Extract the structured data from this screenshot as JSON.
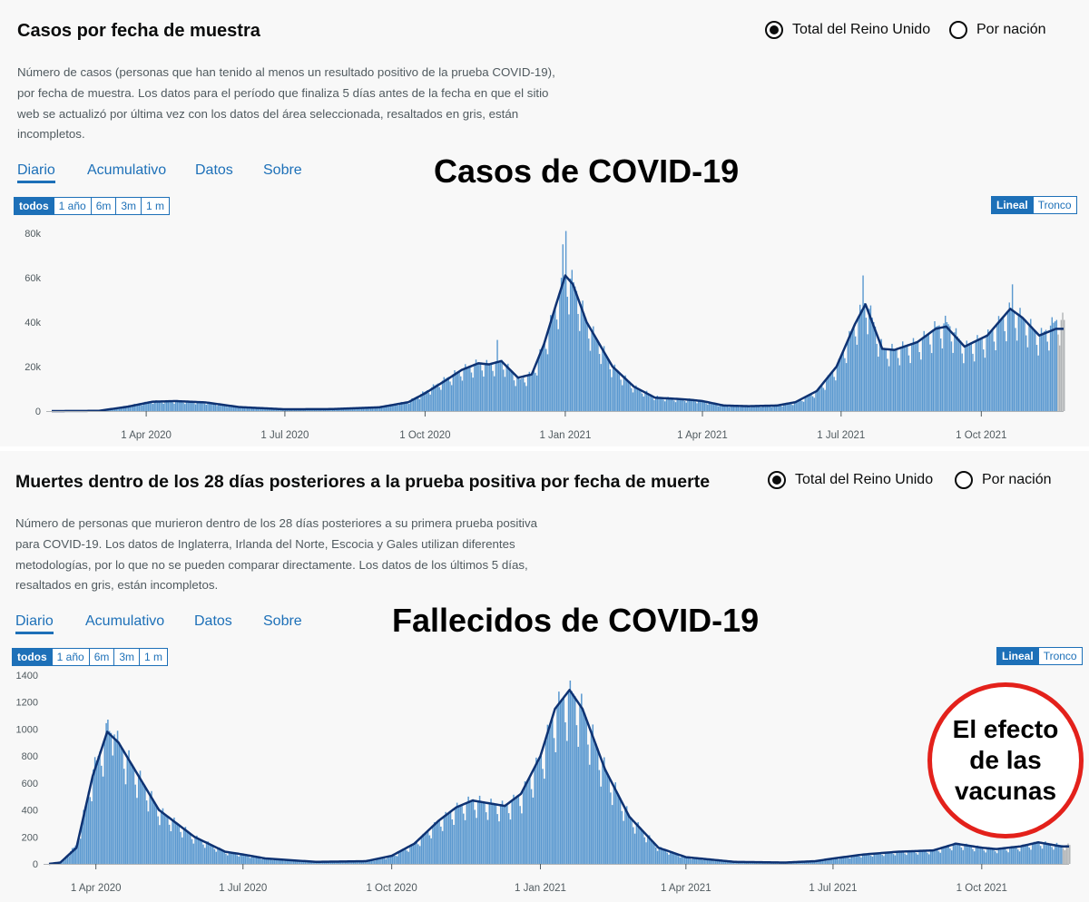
{
  "cases": {
    "title": "Casos por fecha de muestra",
    "radio": [
      {
        "label": "Total del Reino Unido",
        "selected": true
      },
      {
        "label": "Por nación",
        "selected": false
      }
    ],
    "description": "Número de casos (personas que han tenido al menos un resultado positivo de la prueba COVID-19), por fecha de muestra. Los datos para el período que finaliza 5 días antes de la fecha en que el sitio web se actualizó por última vez con los datos del área seleccionada, resaltados en gris, están incompletos.",
    "tabs": [
      "Diario",
      "Acumulativo",
      "Datos",
      "Sobre"
    ],
    "overlay_title": "Casos de COVID-19",
    "ranges": [
      "todos",
      "1 año",
      "6m",
      "3m",
      "1 m"
    ],
    "scales": [
      "Lineal",
      "Tronco"
    ]
  },
  "deaths": {
    "title": "Muertes dentro de los 28 días posteriores a la prueba positiva por fecha de muerte",
    "radio": [
      {
        "label": "Total del Reino Unido",
        "selected": true
      },
      {
        "label": "Por nación",
        "selected": false
      }
    ],
    "description": "Número de personas que murieron dentro de los 28 días posteriores a su primera prueba positiva para COVID-19. Los datos de Inglaterra, Irlanda del Norte, Escocia y Gales utilizan diferentes metodologías, por lo que no se pueden comparar directamente. Los datos de los últimos 5 días, resaltados en gris, están incompletos.",
    "tabs": [
      "Diario",
      "Acumulativo",
      "Datos",
      "Sobre"
    ],
    "overlay_title": "Fallecidos de COVID-19",
    "ranges": [
      "todos",
      "1 año",
      "6m",
      "3m",
      "1 m"
    ],
    "scales": [
      "Lineal",
      "Tronco"
    ]
  },
  "annotation": {
    "lines": [
      "El efecto",
      "de las",
      "vacunas"
    ],
    "color": "#e3211b"
  },
  "colors": {
    "bar": "#5b99d0",
    "bar_incomplete": "#b1b4b6",
    "line": "#0e3272",
    "accent": "#1d70b8"
  },
  "chart_data": [
    {
      "type": "bar",
      "x_axis": "date",
      "x_ticks": [
        "1 Apr 2020",
        "1 Jul 2020",
        "1 Oct 2020",
        "1 Jan 2021",
        "1 Apr 2021",
        "1 Jul 2021",
        "1 Oct 2021"
      ],
      "y_ticks": [
        "0",
        "20k",
        "40k",
        "60k",
        "80k"
      ],
      "xlim": [
        "2020-01-30",
        "2021-11-24"
      ],
      "ylim": [
        0,
        80000
      ],
      "incomplete_days": 5,
      "series": [
        {
          "values_kind": "daily",
          "kf": [
            [
              "2020-01-30",
              0
            ],
            [
              "2020-03-01",
              200
            ],
            [
              "2020-03-20",
              2500
            ],
            [
              "2020-04-05",
              4500
            ],
            [
              "2020-04-20",
              4600
            ],
            [
              "2020-05-10",
              4000
            ],
            [
              "2020-06-01",
              1800
            ],
            [
              "2020-07-01",
              800
            ],
            [
              "2020-08-01",
              900
            ],
            [
              "2020-09-01",
              1800
            ],
            [
              "2020-09-20",
              4500
            ],
            [
              "2020-10-01",
              9000
            ],
            [
              "2020-10-15",
              15000
            ],
            [
              "2020-10-25",
              19000
            ],
            [
              "2020-11-05",
              22000
            ],
            [
              "2020-11-12",
              21000
            ],
            [
              "2020-11-20",
              23000
            ],
            [
              "2020-12-01",
              14000
            ],
            [
              "2020-12-10",
              17000
            ],
            [
              "2020-12-18",
              31000
            ],
            [
              "2020-12-26",
              49000
            ],
            [
              "2021-01-01",
              62000
            ],
            [
              "2021-01-06",
              58000
            ],
            [
              "2021-01-15",
              40000
            ],
            [
              "2021-02-01",
              20000
            ],
            [
              "2021-02-15",
              11000
            ],
            [
              "2021-03-01",
              6500
            ],
            [
              "2021-03-15",
              5500
            ],
            [
              "2021-03-25",
              5200
            ],
            [
              "2021-04-01",
              4500
            ],
            [
              "2021-04-15",
              2500
            ],
            [
              "2021-05-01",
              2200
            ],
            [
              "2021-05-20",
              2500
            ],
            [
              "2021-06-01",
              4000
            ],
            [
              "2021-06-15",
              9000
            ],
            [
              "2021-06-28",
              20000
            ],
            [
              "2021-07-10",
              40000
            ],
            [
              "2021-07-17",
              50000
            ],
            [
              "2021-07-28",
              28000
            ],
            [
              "2021-08-05",
              28000
            ],
            [
              "2021-08-20",
              31000
            ],
            [
              "2021-09-01",
              38000
            ],
            [
              "2021-09-08",
              40000
            ],
            [
              "2021-09-20",
              29000
            ],
            [
              "2021-10-05",
              34000
            ],
            [
              "2021-10-20",
              46000
            ],
            [
              "2021-10-28",
              42000
            ],
            [
              "2021-11-08",
              34000
            ],
            [
              "2021-11-19",
              41000
            ]
          ],
          "spikes": [
            [
              "2021-01-01",
              81000
            ],
            [
              "2020-12-30",
              75000
            ],
            [
              "2021-07-15",
              61000
            ],
            [
              "2021-10-21",
              57000
            ],
            [
              "2020-11-17",
              32000
            ]
          ]
        },
        {
          "values_kind": "7-day average",
          "kf": [
            [
              "2020-01-30",
              0
            ],
            [
              "2020-03-01",
              100
            ],
            [
              "2020-03-20",
              2000
            ],
            [
              "2020-04-05",
              4200
            ],
            [
              "2020-04-20",
              4500
            ],
            [
              "2020-05-10",
              3900
            ],
            [
              "2020-06-01",
              1800
            ],
            [
              "2020-07-01",
              800
            ],
            [
              "2020-08-01",
              900
            ],
            [
              "2020-09-01",
              1700
            ],
            [
              "2020-09-20",
              4000
            ],
            [
              "2020-10-01",
              8000
            ],
            [
              "2020-10-15",
              14000
            ],
            [
              "2020-10-25",
              18500
            ],
            [
              "2020-11-05",
              21500
            ],
            [
              "2020-11-12",
              21000
            ],
            [
              "2020-11-20",
              22500
            ],
            [
              "2020-12-01",
              15000
            ],
            [
              "2020-12-10",
              16500
            ],
            [
              "2020-12-18",
              30000
            ],
            [
              "2020-12-26",
              48000
            ],
            [
              "2021-01-01",
              61000
            ],
            [
              "2021-01-06",
              57000
            ],
            [
              "2021-01-15",
              40000
            ],
            [
              "2021-02-01",
              20000
            ],
            [
              "2021-02-15",
              11000
            ],
            [
              "2021-03-01",
              6000
            ],
            [
              "2021-03-15",
              5500
            ],
            [
              "2021-03-25",
              5000
            ],
            [
              "2021-04-01",
              4500
            ],
            [
              "2021-04-15",
              2500
            ],
            [
              "2021-05-01",
              2200
            ],
            [
              "2021-05-20",
              2500
            ],
            [
              "2021-06-01",
              4000
            ],
            [
              "2021-06-15",
              9000
            ],
            [
              "2021-06-28",
              20000
            ],
            [
              "2021-07-10",
              39000
            ],
            [
              "2021-07-17",
              48000
            ],
            [
              "2021-07-28",
              28000
            ],
            [
              "2021-08-05",
              27500
            ],
            [
              "2021-08-20",
              31000
            ],
            [
              "2021-09-01",
              37000
            ],
            [
              "2021-09-08",
              38000
            ],
            [
              "2021-09-20",
              29000
            ],
            [
              "2021-10-05",
              34000
            ],
            [
              "2021-10-20",
              46000
            ],
            [
              "2021-10-28",
              42000
            ],
            [
              "2021-11-08",
              34000
            ],
            [
              "2021-11-19",
              37000
            ]
          ]
        }
      ]
    },
    {
      "type": "bar",
      "x_axis": "date",
      "x_ticks": [
        "1 Apr 2020",
        "1 Jul 2020",
        "1 Oct 2020",
        "1 Jan 2021",
        "1 Apr 2021",
        "1 Jul 2021",
        "1 Oct 2021"
      ],
      "y_ticks": [
        "0",
        "200",
        "400",
        "600",
        "800",
        "1000",
        "1200",
        "1400"
      ],
      "xlim": [
        "2020-03-03",
        "2021-11-24"
      ],
      "ylim": [
        0,
        1400
      ],
      "incomplete_days": 5,
      "series": [
        {
          "values_kind": "daily",
          "kf": [
            [
              "2020-03-03",
              0
            ],
            [
              "2020-03-10",
              10
            ],
            [
              "2020-03-20",
              150
            ],
            [
              "2020-03-30",
              700
            ],
            [
              "2020-04-08",
              1000
            ],
            [
              "2020-04-15",
              900
            ],
            [
              "2020-04-25",
              700
            ],
            [
              "2020-05-10",
              400
            ],
            [
              "2020-06-01",
              200
            ],
            [
              "2020-06-20",
              90
            ],
            [
              "2020-07-01",
              70
            ],
            [
              "2020-07-15",
              40
            ],
            [
              "2020-08-15",
              15
            ],
            [
              "2020-09-15",
              20
            ],
            [
              "2020-10-01",
              60
            ],
            [
              "2020-10-15",
              150
            ],
            [
              "2020-10-30",
              320
            ],
            [
              "2020-11-10",
              420
            ],
            [
              "2020-11-20",
              480
            ],
            [
              "2020-11-30",
              450
            ],
            [
              "2020-12-10",
              430
            ],
            [
              "2020-12-20",
              520
            ],
            [
              "2021-01-01",
              800
            ],
            [
              "2021-01-10",
              1150
            ],
            [
              "2021-01-19",
              1300
            ],
            [
              "2021-01-27",
              1150
            ],
            [
              "2021-02-10",
              700
            ],
            [
              "2021-02-25",
              350
            ],
            [
              "2021-03-15",
              120
            ],
            [
              "2021-04-01",
              50
            ],
            [
              "2021-05-01",
              15
            ],
            [
              "2021-06-01",
              10
            ],
            [
              "2021-06-20",
              20
            ],
            [
              "2021-07-01",
              40
            ],
            [
              "2021-07-20",
              70
            ],
            [
              "2021-08-10",
              90
            ],
            [
              "2021-09-01",
              100
            ],
            [
              "2021-09-15",
              150
            ],
            [
              "2021-10-01",
              120
            ],
            [
              "2021-10-10",
              110
            ],
            [
              "2021-10-25",
              130
            ],
            [
              "2021-11-05",
              160
            ],
            [
              "2021-11-19",
              140
            ]
          ],
          "spikes": [
            [
              "2020-04-08",
              1070
            ],
            [
              "2021-01-19",
              1360
            ],
            [
              "2020-04-12",
              960
            ]
          ]
        },
        {
          "values_kind": "7-day average",
          "kf": [
            [
              "2020-03-03",
              0
            ],
            [
              "2020-03-10",
              10
            ],
            [
              "2020-03-20",
              120
            ],
            [
              "2020-03-30",
              650
            ],
            [
              "2020-04-08",
              980
            ],
            [
              "2020-04-15",
              900
            ],
            [
              "2020-04-25",
              700
            ],
            [
              "2020-05-10",
              400
            ],
            [
              "2020-06-01",
              200
            ],
            [
              "2020-06-20",
              90
            ],
            [
              "2020-07-01",
              70
            ],
            [
              "2020-07-15",
              40
            ],
            [
              "2020-08-15",
              15
            ],
            [
              "2020-09-15",
              20
            ],
            [
              "2020-10-01",
              60
            ],
            [
              "2020-10-15",
              150
            ],
            [
              "2020-10-30",
              320
            ],
            [
              "2020-11-10",
              420
            ],
            [
              "2020-11-20",
              470
            ],
            [
              "2020-11-30",
              450
            ],
            [
              "2020-12-10",
              430
            ],
            [
              "2020-12-20",
              520
            ],
            [
              "2021-01-01",
              800
            ],
            [
              "2021-01-10",
              1150
            ],
            [
              "2021-01-19",
              1290
            ],
            [
              "2021-01-27",
              1150
            ],
            [
              "2021-02-10",
              700
            ],
            [
              "2021-02-25",
              350
            ],
            [
              "2021-03-15",
              120
            ],
            [
              "2021-04-01",
              50
            ],
            [
              "2021-05-01",
              15
            ],
            [
              "2021-06-01",
              10
            ],
            [
              "2021-06-20",
              20
            ],
            [
              "2021-07-01",
              40
            ],
            [
              "2021-07-20",
              70
            ],
            [
              "2021-08-10",
              90
            ],
            [
              "2021-09-01",
              100
            ],
            [
              "2021-09-15",
              150
            ],
            [
              "2021-10-01",
              120
            ],
            [
              "2021-10-10",
              110
            ],
            [
              "2021-10-25",
              130
            ],
            [
              "2021-11-05",
              160
            ],
            [
              "2021-11-19",
              130
            ]
          ]
        }
      ]
    }
  ]
}
